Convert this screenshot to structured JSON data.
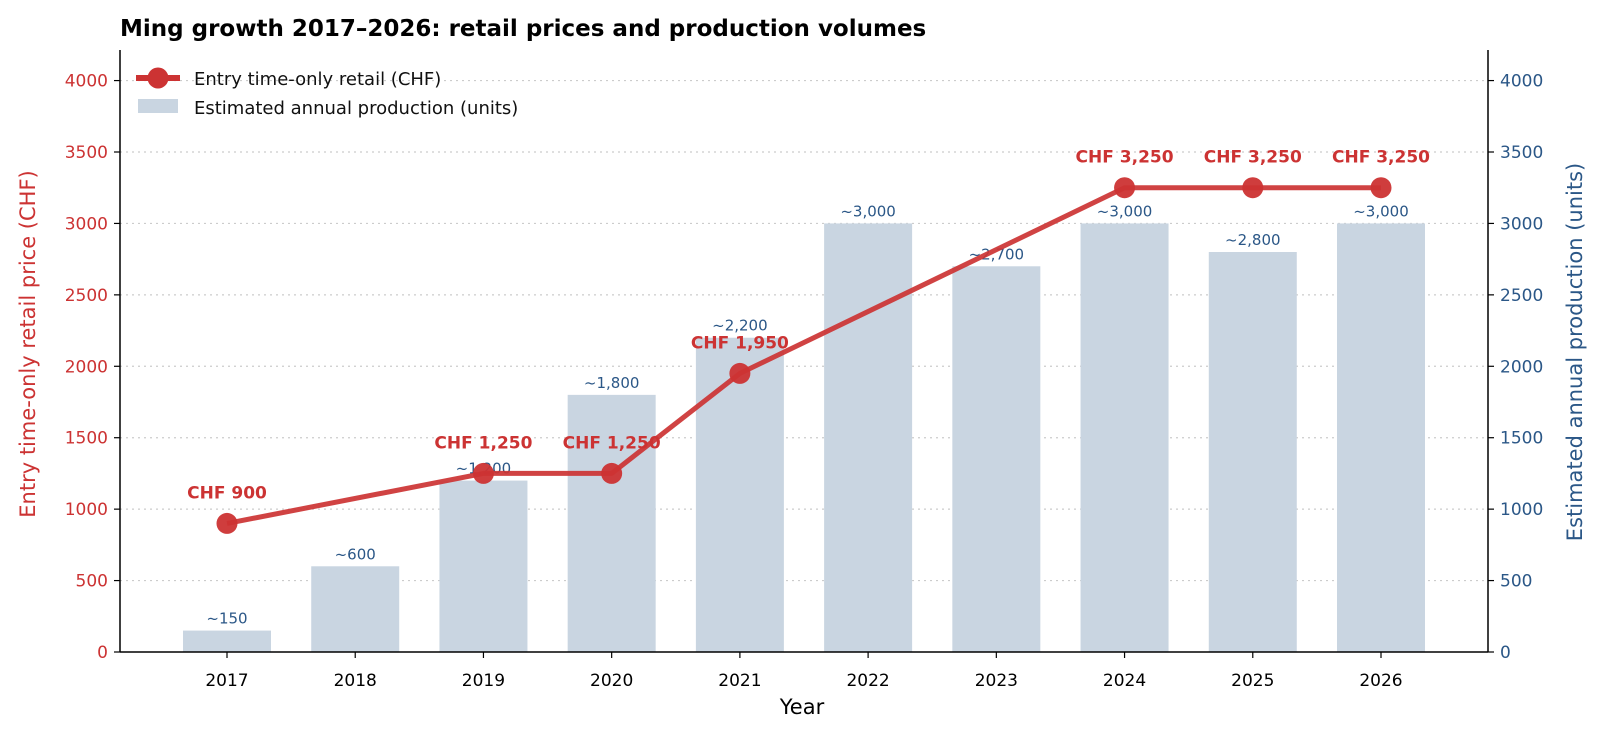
{
  "chart_data": {
    "type": "bar",
    "title": "Ming growth 2017–2026: retail prices and production volumes",
    "xlabel": "Year",
    "ylabel_left": "Entry time-only retail price (CHF)",
    "ylabel_right": "Estimated annual production (units)",
    "categories": [
      "2017",
      "2018",
      "2019",
      "2020",
      "2021",
      "2022",
      "2023",
      "2024",
      "2025",
      "2026"
    ],
    "ylim_left": [
      0,
      4200
    ],
    "ylim_right": [
      0,
      4200
    ],
    "yticks_left": [
      0,
      500,
      1000,
      1500,
      2000,
      2500,
      3000,
      3500,
      4000
    ],
    "yticks_right": [
      0,
      500,
      1000,
      1500,
      2000,
      2500,
      3000,
      3500,
      4000
    ],
    "grid": "horizontal-dotted",
    "legend_position": "top-left",
    "series": [
      {
        "name": "Entry time-only retail (CHF)",
        "type": "line",
        "axis": "left",
        "color": "#cc3333",
        "x": [
          "2017",
          "2019",
          "2020",
          "2021",
          "2024",
          "2025",
          "2026"
        ],
        "values": [
          900,
          1250,
          1250,
          1950,
          3250,
          3250,
          3250
        ],
        "labels": [
          "CHF 900",
          "CHF 1,250",
          "CHF 1,250",
          "CHF 1,950",
          "CHF 3,250",
          "CHF 3,250",
          "CHF 3,250"
        ]
      },
      {
        "name": "Estimated annual production (units)",
        "type": "bar",
        "axis": "right",
        "color": "#c9d5e1",
        "label_color": "#2b5787",
        "x": [
          "2017",
          "2018",
          "2019",
          "2020",
          "2021",
          "2022",
          "2023",
          "2024",
          "2025",
          "2026"
        ],
        "values": [
          150,
          600,
          1200,
          1800,
          2200,
          3000,
          2700,
          3000,
          2800,
          3000
        ],
        "labels": [
          "~150",
          "~600",
          "~1,200",
          "~1,800",
          "~2,200",
          "~3,000",
          "~2,700",
          "~3,000",
          "~2,800",
          "~3,000"
        ]
      }
    ],
    "colors": {
      "left_axis": "#cc3333",
      "right_axis": "#2b5787",
      "grid": "#cccccc"
    }
  }
}
